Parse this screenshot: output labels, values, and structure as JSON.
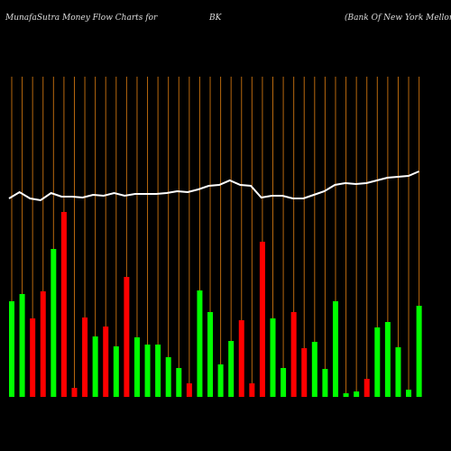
{
  "chart_data": {
    "type": "bar",
    "title_parts": [
      "MunafaSutra  Money Flow  Charts for",
      "BK",
      "(Bank Of  New  York Mellon  C"
    ],
    "values": [
      106,
      114,
      87,
      117,
      164,
      205,
      10,
      88,
      67,
      78,
      56,
      133,
      66,
      58,
      58,
      44,
      32,
      15,
      118,
      94,
      36,
      62,
      85,
      15,
      172,
      87,
      32,
      94,
      54,
      61,
      31,
      106,
      4,
      6,
      20,
      77,
      83,
      55,
      8,
      101
    ],
    "colors": [
      "g",
      "g",
      "r",
      "r",
      "g",
      "r",
      "r",
      "r",
      "g",
      "r",
      "g",
      "r",
      "g",
      "g",
      "g",
      "g",
      "g",
      "r",
      "g",
      "g",
      "g",
      "g",
      "r",
      "r",
      "r",
      "g",
      "g",
      "r",
      "r",
      "g",
      "g",
      "g",
      "g",
      "g",
      "r",
      "g",
      "g",
      "g",
      "g",
      "g"
    ],
    "color_up": "#00ff00",
    "color_down": "#ff0000",
    "line": {
      "color": "#ffffff",
      "values": [
        220,
        227,
        220,
        218,
        226,
        222,
        222,
        221,
        224,
        223,
        226,
        223,
        225,
        225,
        225,
        226,
        228,
        227,
        230,
        234,
        235,
        240,
        235,
        234,
        221,
        223,
        223,
        220,
        220,
        224,
        228,
        235,
        237,
        236,
        237,
        240,
        243,
        244,
        245,
        250
      ]
    },
    "ylim": [
      0,
      440
    ],
    "grid_color": "#b8680e"
  }
}
